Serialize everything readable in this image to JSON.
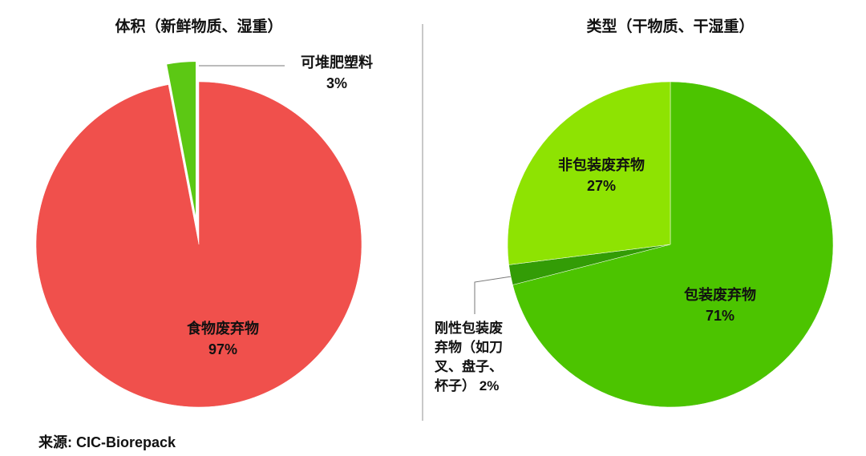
{
  "chart_data": [
    {
      "type": "pie",
      "title": "体积（新鲜物质、湿重）",
      "categories": [
        "食物废弃物",
        "可堆肥塑料"
      ],
      "values": [
        97,
        3
      ],
      "value_labels": [
        "97%",
        "3%"
      ],
      "colors": [
        "#f0504c",
        "#5cc814"
      ]
    },
    {
      "type": "pie",
      "title": "类型（干物质、干湿重）",
      "categories": [
        "包装废弃物",
        "刚性包装废弃物（如刀叉、盘子、杯子）",
        "非包装废弃物"
      ],
      "values": [
        71,
        2,
        27
      ],
      "value_labels": [
        "71%",
        "2%",
        "27%"
      ],
      "colors": [
        "#4cc400",
        "#339c06",
        "#8ee302"
      ]
    }
  ],
  "source": "来源: CIC-Biorepack"
}
